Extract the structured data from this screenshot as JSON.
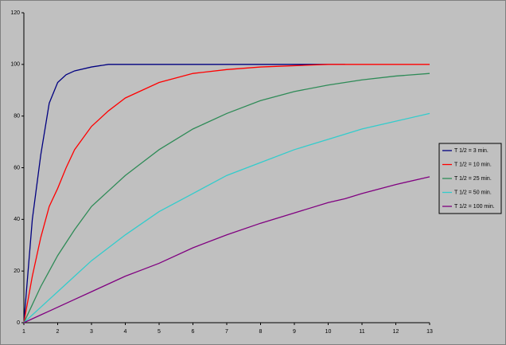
{
  "chart_data": {
    "type": "line",
    "x": [
      1,
      1.25,
      1.5,
      1.75,
      2,
      2.25,
      2.5,
      3,
      3.5,
      4,
      4.5,
      5,
      6,
      7,
      8,
      9,
      10,
      10.5,
      11,
      12,
      13
    ],
    "series": [
      {
        "name": "T 1/2 = 3 min.",
        "color": "#000080",
        "values": [
          0,
          40,
          65,
          85,
          93,
          96,
          97.5,
          99,
          100,
          100,
          100,
          100,
          100,
          100,
          100,
          100,
          100,
          100,
          null,
          null,
          null
        ]
      },
      {
        "name": "T 1/2 = 10 min.",
        "color": "#ff0000",
        "values": [
          0,
          18,
          33,
          45,
          52,
          60,
          67,
          76,
          82,
          87,
          90,
          93,
          96.5,
          98,
          99,
          99.5,
          100,
          100,
          100,
          100,
          100
        ]
      },
      {
        "name": "T 1/2 = 25 min.",
        "color": "#2e8b57",
        "values": [
          0,
          7,
          14,
          20,
          26,
          31,
          36,
          45,
          51,
          57,
          62,
          67,
          75,
          81,
          86,
          89.5,
          92,
          93,
          94,
          95.5,
          96.5
        ]
      },
      {
        "name": "T 1/2 = 50 min.",
        "color": "#33cccc",
        "values": [
          0,
          3,
          6,
          9,
          12,
          15,
          18,
          24,
          29,
          34,
          38.5,
          43,
          50,
          57,
          62,
          67,
          71,
          73,
          75,
          78,
          81
        ]
      },
      {
        "name": "T 1/2 = 100 min.",
        "color": "#800080",
        "values": [
          0,
          1.5,
          3,
          4.5,
          6,
          7.5,
          9,
          12,
          15,
          18,
          20.5,
          23,
          29,
          34,
          38.5,
          42.5,
          46.5,
          48,
          50,
          53.5,
          56.5
        ]
      }
    ],
    "xlim": [
      1,
      13
    ],
    "xticks": [
      1,
      2,
      3,
      4,
      5,
      6,
      7,
      8,
      9,
      10,
      11,
      12,
      13
    ],
    "ylim": [
      0,
      120
    ],
    "yticks": [
      0,
      20,
      40,
      60,
      80,
      100,
      120
    ],
    "legend": "right"
  }
}
